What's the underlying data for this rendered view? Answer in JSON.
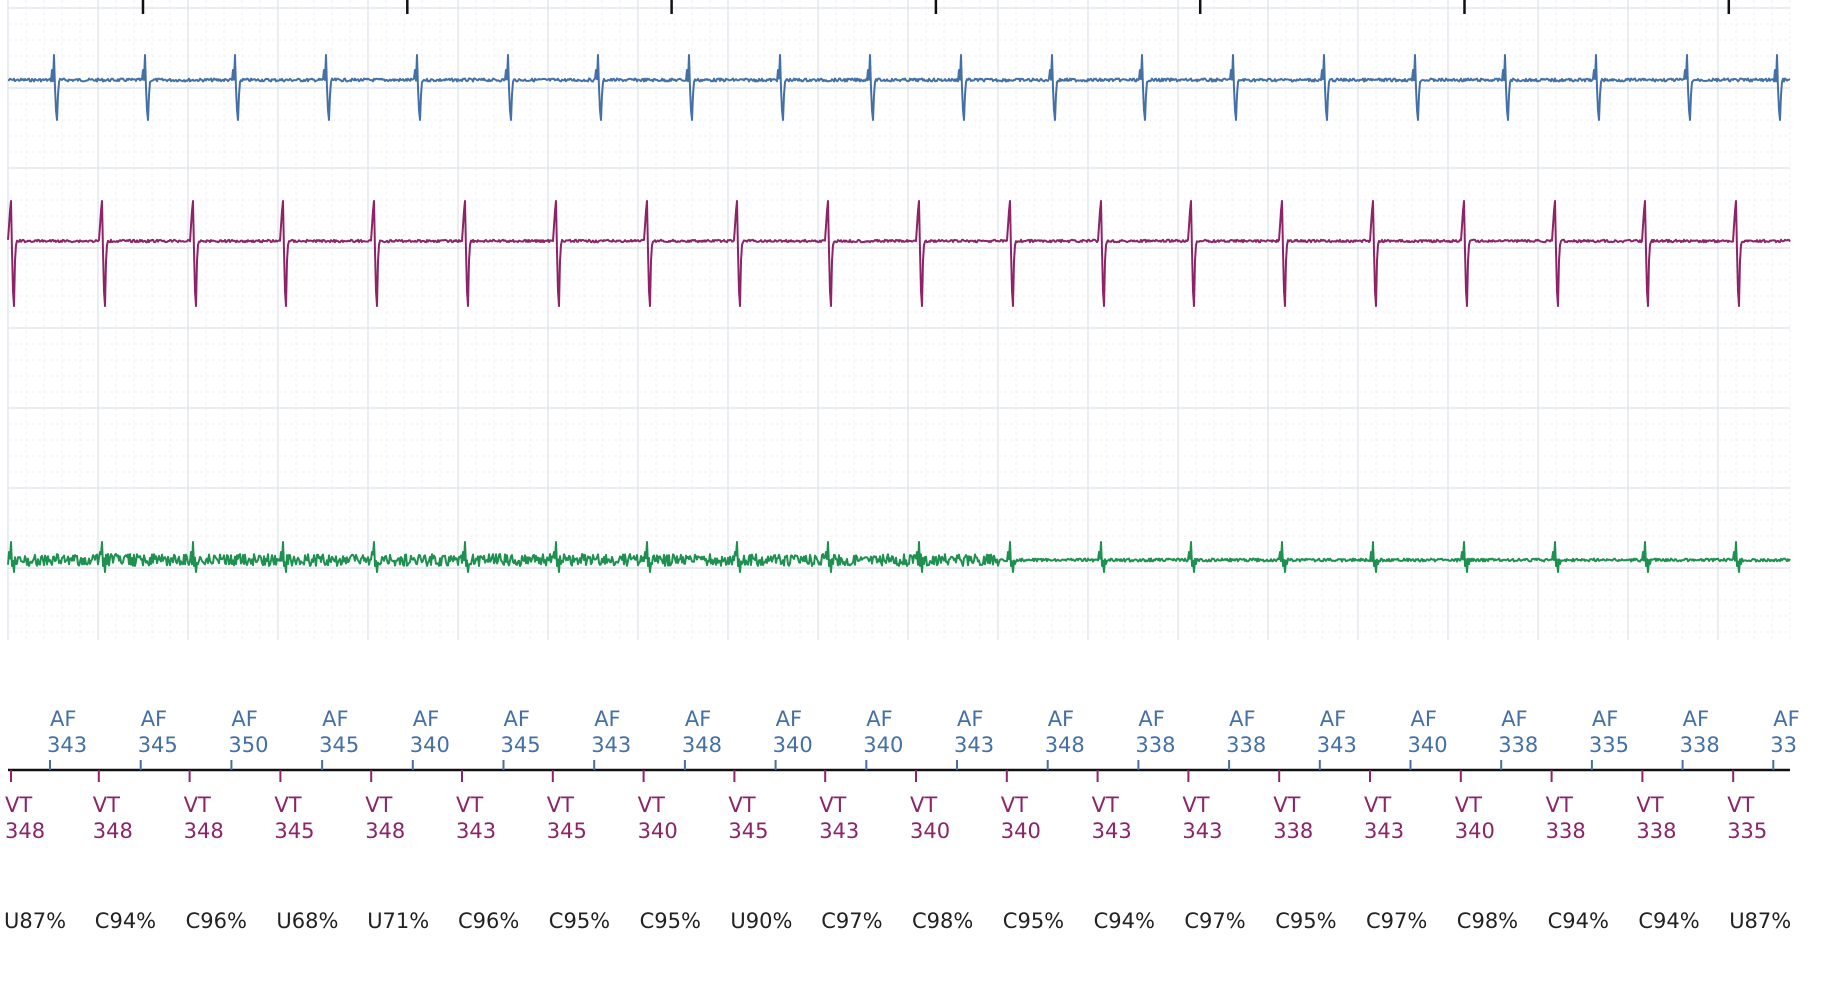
{
  "chart_data": {
    "type": "line",
    "colors": {
      "channel_top": "#4470a6",
      "channel_mid": "#8c2467",
      "channel_bottom": "#1e9150",
      "atrial_markers": "#4470a6",
      "ventricular_markers": "#8c2467",
      "classification": "#222222",
      "grid_major": "#dde3ea",
      "grid_minor": "#eef1f5"
    },
    "grid": true,
    "atrial_markers": [
      {
        "label": "AF",
        "value": "343"
      },
      {
        "label": "AF",
        "value": "345"
      },
      {
        "label": "AF",
        "value": "350"
      },
      {
        "label": "AF",
        "value": "345"
      },
      {
        "label": "AF",
        "value": "340"
      },
      {
        "label": "AF",
        "value": "345"
      },
      {
        "label": "AF",
        "value": "343"
      },
      {
        "label": "AF",
        "value": "348"
      },
      {
        "label": "AF",
        "value": "340"
      },
      {
        "label": "AF",
        "value": "340"
      },
      {
        "label": "AF",
        "value": "343"
      },
      {
        "label": "AF",
        "value": "348"
      },
      {
        "label": "AF",
        "value": "338"
      },
      {
        "label": "AF",
        "value": "338"
      },
      {
        "label": "AF",
        "value": "343"
      },
      {
        "label": "AF",
        "value": "340"
      },
      {
        "label": "AF",
        "value": "338"
      },
      {
        "label": "AF",
        "value": "335"
      },
      {
        "label": "AF",
        "value": "338"
      },
      {
        "label": "AF",
        "value": "33"
      }
    ],
    "ventricular_markers": [
      {
        "label": "VT",
        "value": "348"
      },
      {
        "label": "VT",
        "value": "348"
      },
      {
        "label": "VT",
        "value": "348"
      },
      {
        "label": "VT",
        "value": "345"
      },
      {
        "label": "VT",
        "value": "348"
      },
      {
        "label": "VT",
        "value": "343"
      },
      {
        "label": "VT",
        "value": "345"
      },
      {
        "label": "VT",
        "value": "340"
      },
      {
        "label": "VT",
        "value": "345"
      },
      {
        "label": "VT",
        "value": "343"
      },
      {
        "label": "VT",
        "value": "340"
      },
      {
        "label": "VT",
        "value": "340"
      },
      {
        "label": "VT",
        "value": "343"
      },
      {
        "label": "VT",
        "value": "343"
      },
      {
        "label": "VT",
        "value": "338"
      },
      {
        "label": "VT",
        "value": "343"
      },
      {
        "label": "VT",
        "value": "340"
      },
      {
        "label": "VT",
        "value": "338"
      },
      {
        "label": "VT",
        "value": "338"
      },
      {
        "label": "VT",
        "value": "335"
      }
    ],
    "classifications": [
      "U87%",
      "C94%",
      "C96%",
      "U68%",
      "U71%",
      "C96%",
      "C95%",
      "C95%",
      "U90%",
      "C97%",
      "C98%",
      "C95%",
      "C94%",
      "C97%",
      "C95%",
      "C97%",
      "C98%",
      "C94%",
      "C94%",
      "U87%"
    ]
  }
}
